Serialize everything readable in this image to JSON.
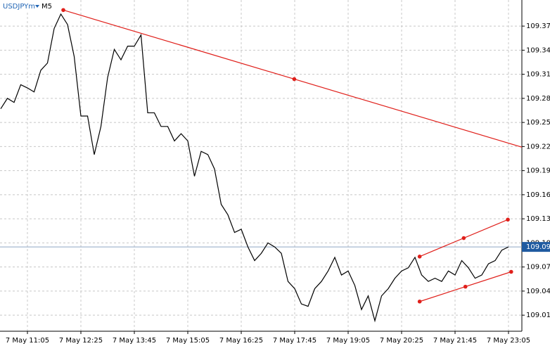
{
  "chart_data": {
    "type": "line",
    "symbol": "USDJPYm",
    "timeframe": "M5",
    "categories": [
      null,
      null,
      null,
      null,
      "7 May 11:05",
      null,
      null,
      null,
      null,
      null,
      null,
      null,
      "7 May 12:25",
      null,
      null,
      null,
      null,
      null,
      null,
      null,
      "7 May 13:45",
      null,
      null,
      null,
      null,
      null,
      null,
      null,
      "7 May 15:05",
      null,
      null,
      null,
      null,
      null,
      null,
      null,
      "7 May 16:25",
      null,
      null,
      null,
      null,
      null,
      null,
      null,
      "7 May 17:45",
      null,
      null,
      null,
      null,
      null,
      null,
      null,
      "7 May 19:05",
      null,
      null,
      null,
      null,
      null,
      null,
      null,
      "7 May 20:25",
      null,
      null,
      null,
      null,
      null,
      null,
      null,
      "7 May 21:45",
      null,
      null,
      null,
      null,
      null,
      null,
      null,
      "7 May 23:05"
    ],
    "series": [
      {
        "name": "USDJPYm",
        "color": "#000000",
        "values": [
          109.267,
          109.28,
          109.275,
          109.297,
          109.293,
          109.288,
          109.315,
          109.324,
          109.367,
          109.385,
          109.372,
          109.332,
          109.258,
          109.258,
          109.21,
          109.245,
          109.306,
          109.341,
          109.328,
          109.345,
          109.345,
          109.359,
          109.262,
          109.262,
          109.245,
          109.245,
          109.227,
          109.236,
          109.227,
          109.183,
          109.214,
          109.21,
          109.192,
          109.148,
          109.135,
          109.113,
          109.117,
          109.095,
          109.078,
          109.087,
          109.1,
          109.095,
          109.087,
          109.052,
          109.043,
          109.024,
          109.021,
          109.043,
          109.052,
          109.065,
          109.082,
          109.06,
          109.065,
          109.047,
          109.017,
          109.034,
          109.003,
          109.034,
          109.043,
          109.056,
          109.065,
          109.069,
          109.082,
          109.06,
          109.052,
          109.056,
          109.052,
          109.065,
          109.06,
          109.078,
          109.069,
          109.056,
          109.06,
          109.074,
          109.078,
          109.091,
          109.095
        ]
      }
    ],
    "ylim": [
      108.99,
      109.4025
    ],
    "yticks": [
      {
        "value": 109.01,
        "label": "109.010"
      },
      {
        "value": 109.04,
        "label": "109.040"
      },
      {
        "value": 109.07,
        "label": "109.070"
      },
      {
        "value": 109.1,
        "label": "109.100"
      },
      {
        "value": 109.13,
        "label": "109.130"
      },
      {
        "value": 109.16,
        "label": "109.160"
      },
      {
        "value": 109.19,
        "label": "109.190"
      },
      {
        "value": 109.22,
        "label": "109.220"
      },
      {
        "value": 109.25,
        "label": "109.250"
      },
      {
        "value": 109.28,
        "label": "109.280"
      },
      {
        "value": 109.31,
        "label": "109.310"
      },
      {
        "value": 109.34,
        "label": "109.340"
      },
      {
        "value": 109.37,
        "label": "109.370"
      }
    ],
    "current_price": 109.095,
    "grid": true,
    "trendlines": [
      {
        "color": "#e0201b",
        "points": [
          [
            9.37,
            109.39
          ],
          [
            78.5,
            109.218
          ]
        ]
      },
      {
        "color": "#e0201b",
        "points": [
          [
            62.7,
            109.083
          ],
          [
            75.9,
            109.129
          ]
        ]
      },
      {
        "color": "#e0201b",
        "points": [
          [
            62.7,
            109.027
          ],
          [
            76.4,
            109.064
          ]
        ]
      }
    ]
  }
}
